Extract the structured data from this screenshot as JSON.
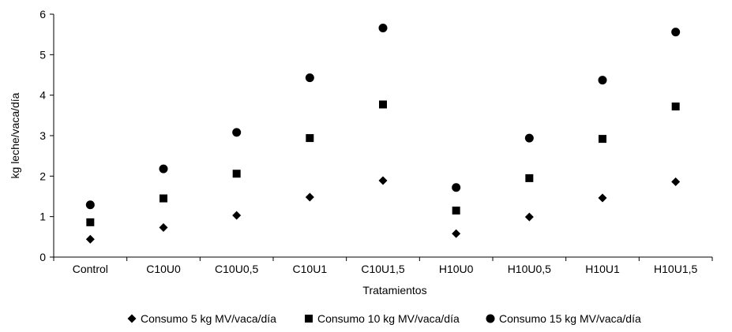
{
  "chart_data": {
    "type": "scatter",
    "categories": [
      "Control",
      "C10U0",
      "C10U0,5",
      "C10U1",
      "C10U1,5",
      "H10U0",
      "H10U0,5",
      "H10U1",
      "H10U1,5"
    ],
    "series": [
      {
        "name": "Consumo 5 kg MV/vaca/día",
        "marker": "diamond",
        "values": [
          0.44,
          0.73,
          1.03,
          1.48,
          1.89,
          0.58,
          0.99,
          1.46,
          1.86
        ]
      },
      {
        "name": "Consumo 10 kg MV/vaca/día",
        "marker": "square",
        "values": [
          0.86,
          1.45,
          2.06,
          2.94,
          3.77,
          1.15,
          1.95,
          2.92,
          3.72
        ]
      },
      {
        "name": "Consumo 15 kg MV/vaca/día",
        "marker": "circle",
        "values": [
          1.29,
          2.18,
          3.08,
          4.43,
          5.66,
          1.72,
          2.94,
          4.37,
          5.56
        ]
      }
    ],
    "xlabel": "Tratamientos",
    "ylabel": "kg leche/vaca/día",
    "ylim": [
      0,
      6
    ],
    "yticks": [
      "0",
      "1",
      "2",
      "3",
      "4",
      "5",
      "6"
    ],
    "grid": false,
    "legend_position": "bottom",
    "colors": {
      "marker": "#000000",
      "axis": "#000000"
    }
  }
}
